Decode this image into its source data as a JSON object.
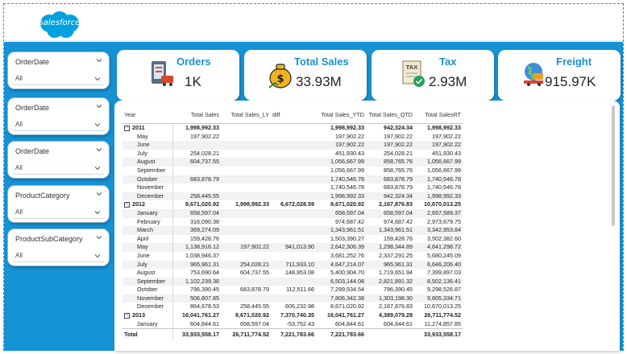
{
  "brand": {
    "logo_text": "salesforce",
    "logo_color": "#00a1e0"
  },
  "slicers": [
    {
      "title": "OrderDate",
      "value": "All"
    },
    {
      "title": "OrderDate",
      "value": "All"
    },
    {
      "title": "OrderDate",
      "value": "All"
    },
    {
      "title": "ProductCategory",
      "value": "All"
    },
    {
      "title": "ProductSubCategory",
      "value": "All"
    }
  ],
  "kpis": [
    {
      "label": "Orders",
      "value": "1K",
      "icon": "orders-icon"
    },
    {
      "label": "Total Sales",
      "value": "33.93M",
      "icon": "money-bag-icon"
    },
    {
      "label": "Tax",
      "value": "2.93M",
      "icon": "tax-document-icon"
    },
    {
      "label": "Freight",
      "value": "915.97K",
      "icon": "freight-globe-icon"
    }
  ],
  "matrix": {
    "headers": [
      "Year",
      "Total Sales",
      "Total Sales_LY",
      "diff",
      "Total Sales_YTD",
      "Total Sales_QTD",
      "Total SalesRT"
    ],
    "rows": [
      {
        "type": "year",
        "label": "2011",
        "cells": [
          "1,998,992.33",
          "",
          "",
          "1,998,992.33",
          "942,324.34",
          "1,998,992.33"
        ]
      },
      {
        "type": "month",
        "label": "May",
        "cells": [
          "197,902.22",
          "",
          "",
          "197,902.22",
          "197,902.22",
          "197,902.22"
        ]
      },
      {
        "type": "month",
        "label": "June",
        "cells": [
          "",
          "",
          "",
          "197,902.22",
          "197,902.22",
          "197,902.22"
        ]
      },
      {
        "type": "month",
        "label": "July",
        "cells": [
          "254,028.21",
          "",
          "",
          "451,930.43",
          "254,028.21",
          "451,930.43"
        ]
      },
      {
        "type": "month",
        "label": "August",
        "cells": [
          "604,737.55",
          "",
          "",
          "1,056,667.99",
          "858,765.76",
          "1,056,667.99"
        ]
      },
      {
        "type": "month",
        "label": "September",
        "cells": [
          "",
          "",
          "",
          "1,056,667.99",
          "858,765.76",
          "1,056,667.99"
        ]
      },
      {
        "type": "month",
        "label": "October",
        "cells": [
          "683,878.79",
          "",
          "",
          "1,740,546.78",
          "683,878.79",
          "1,740,546.78"
        ]
      },
      {
        "type": "month",
        "label": "November",
        "cells": [
          "",
          "",
          "",
          "1,740,546.78",
          "683,878.79",
          "1,740,546.78"
        ]
      },
      {
        "type": "month",
        "label": "December",
        "cells": [
          "258,445.55",
          "",
          "",
          "1,998,992.33",
          "942,324.34",
          "1,998,992.33"
        ]
      },
      {
        "type": "year",
        "label": "2012",
        "cells": [
          "8,671,020.92",
          "1,998,992.33",
          "6,672,028.59",
          "8,671,020.92",
          "2,167,876.83",
          "10,670,013.25"
        ]
      },
      {
        "type": "month",
        "label": "January",
        "cells": [
          "658,597.04",
          "",
          "",
          "658,597.04",
          "658,597.04",
          "2,657,589.37"
        ]
      },
      {
        "type": "month",
        "label": "February",
        "cells": [
          "316,090.38",
          "",
          "",
          "974,687.42",
          "974,687.42",
          "2,973,679.75"
        ]
      },
      {
        "type": "month",
        "label": "March",
        "cells": [
          "369,274.09",
          "",
          "",
          "1,343,961.51",
          "1,343,961.51",
          "3,342,953.84"
        ]
      },
      {
        "type": "month",
        "label": "April",
        "cells": [
          "159,428.76",
          "",
          "",
          "1,503,390.27",
          "159,428.76",
          "3,502,382.60"
        ]
      },
      {
        "type": "month",
        "label": "May",
        "cells": [
          "1,138,916.12",
          "197,902.22",
          "941,013.90",
          "2,642,306.39",
          "1,298,344.89",
          "4,641,298.72"
        ]
      },
      {
        "type": "month",
        "label": "June",
        "cells": [
          "1,038,946.37",
          "",
          "",
          "3,681,252.76",
          "2,337,291.25",
          "5,680,245.09"
        ]
      },
      {
        "type": "month",
        "label": "July",
        "cells": [
          "965,961.31",
          "254,028.21",
          "711,933.10",
          "4,647,214.07",
          "965,961.31",
          "6,646,206.40"
        ]
      },
      {
        "type": "month",
        "label": "August",
        "cells": [
          "753,690.64",
          "604,737.55",
          "148,953.08",
          "5,400,904.70",
          "1,719,651.94",
          "7,399,897.03"
        ]
      },
      {
        "type": "month",
        "label": "September",
        "cells": [
          "1,102,239.38",
          "",
          "",
          "6,503,144.08",
          "2,821,891.32",
          "8,502,136.41"
        ]
      },
      {
        "type": "month",
        "label": "October",
        "cells": [
          "796,390.45",
          "683,878.79",
          "112,511.66",
          "7,299,534.54",
          "796,390.45",
          "9,298,526.87"
        ]
      },
      {
        "type": "month",
        "label": "November",
        "cells": [
          "506,807.85",
          "",
          "",
          "7,806,342.38",
          "1,303,198.30",
          "9,805,334.71"
        ]
      },
      {
        "type": "month",
        "label": "December",
        "cells": [
          "864,678.53",
          "258,445.55",
          "606,232.98",
          "8,671,020.92",
          "2,167,876.83",
          "10,670,013.25"
        ]
      },
      {
        "type": "year",
        "label": "2013",
        "cells": [
          "16,041,761.27",
          "8,671,020.92",
          "7,370,740.35",
          "16,041,761.27",
          "4,389,079.28",
          "26,711,774.52"
        ]
      },
      {
        "type": "month",
        "label": "January",
        "cells": [
          "604,844.61",
          "658,597.04",
          "-53,752.43",
          "604,844.61",
          "604,844.61",
          "11,274,857.85"
        ]
      }
    ],
    "total": {
      "label": "Total",
      "cells": [
        "33,933,558.17",
        "26,711,774.52",
        "7,221,783.66",
        "7,221,783.66",
        "",
        "33,933,558.17"
      ]
    },
    "expander_symbol": "⊟"
  }
}
